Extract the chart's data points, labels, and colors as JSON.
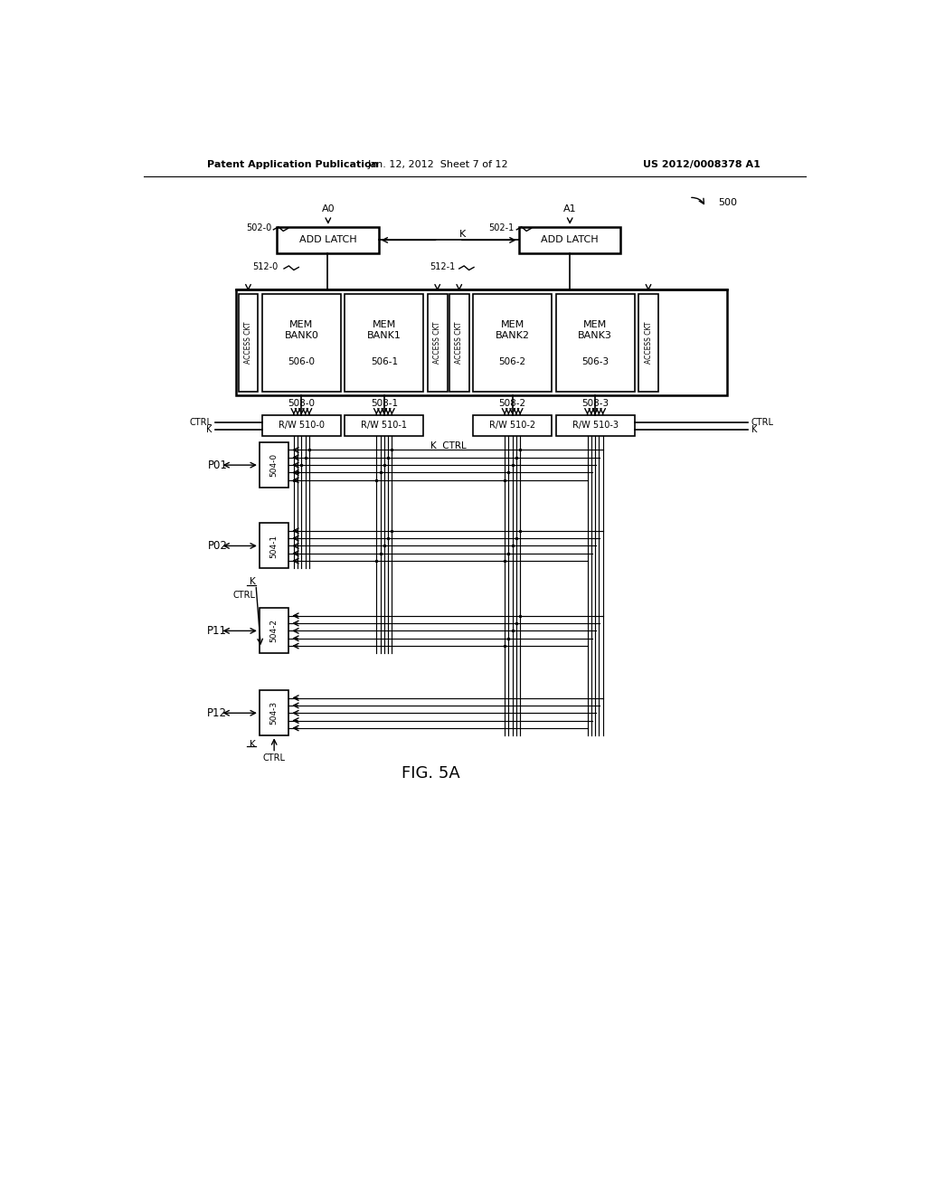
{
  "bg_color": "#ffffff",
  "header_left": "Patent Application Publication",
  "header_mid": "Jan. 12, 2012  Sheet 7 of 12",
  "header_right": "US 2012/0008378 A1",
  "fig_label": "FIG. 5A",
  "fig_number": "500",
  "add_latch_0_label": "ADD LATCH",
  "add_latch_1_label": "ADD LATCH",
  "add_latch_0_id": "502-0",
  "add_latch_1_id": "502-1",
  "bus_0_id": "512-0",
  "bus_1_id": "512-1",
  "mem_banks": [
    {
      "label": "MEM\nBANK0",
      "id": "506-0",
      "bus_id": "508-0"
    },
    {
      "label": "MEM\nBANK1",
      "id": "506-1",
      "bus_id": "508-1"
    },
    {
      "label": "MEM\nBANK2",
      "id": "506-2",
      "bus_id": "508-2"
    },
    {
      "label": "MEM\nBANK3",
      "id": "506-3",
      "bus_id": "508-3"
    }
  ],
  "rw_units": [
    {
      "id": "R/W 510-0"
    },
    {
      "id": "R/W 510-1"
    },
    {
      "id": "R/W 510-2"
    },
    {
      "id": "R/W 510-3"
    }
  ],
  "port_units": [
    {
      "id": "504-0",
      "port_label": "P01"
    },
    {
      "id": "504-1",
      "port_label": "P02"
    },
    {
      "id": "504-2",
      "port_label": "P11"
    },
    {
      "id": "504-3",
      "port_label": "P12"
    }
  ],
  "signal_A0": "A0",
  "signal_A1": "A1",
  "signal_K": "K",
  "signal_CTRL": "CTRL"
}
